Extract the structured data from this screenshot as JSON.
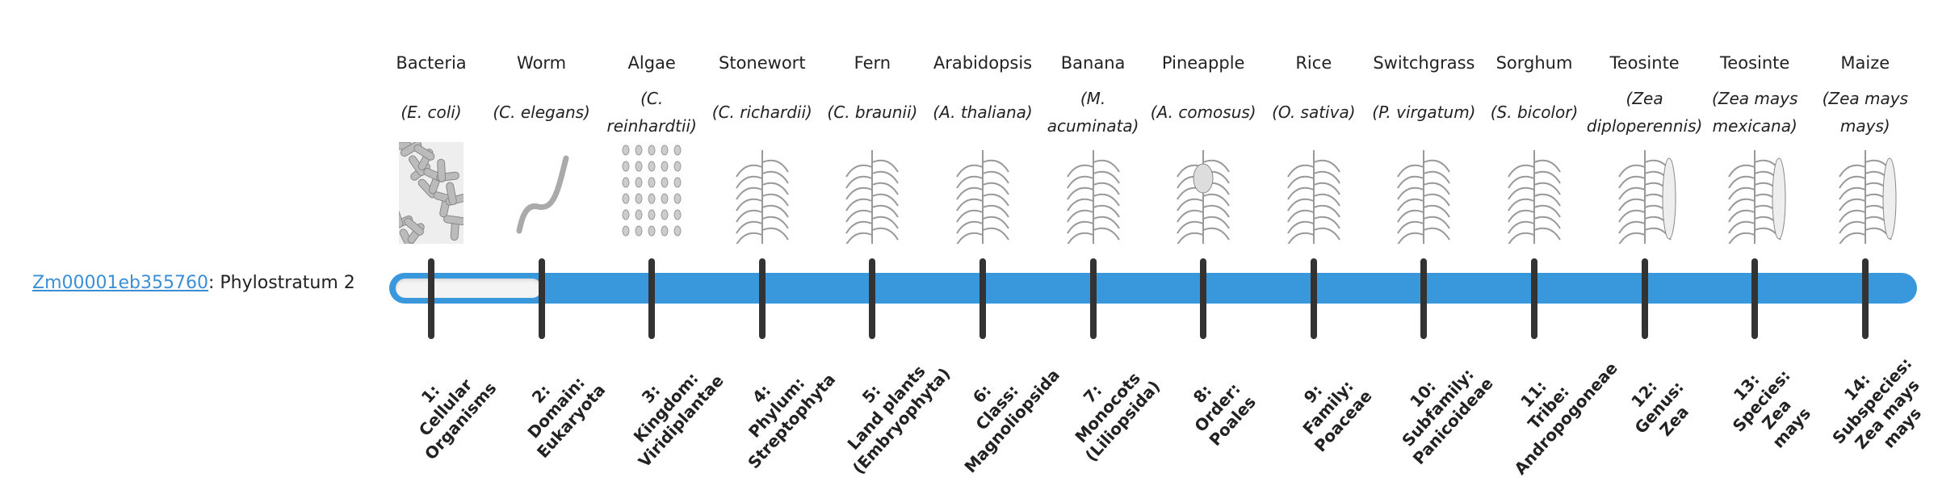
{
  "gene": {
    "id": "Zm00001eb355760",
    "suffix": ": Phylostratum 2"
  },
  "current_stratum": 2,
  "colors": {
    "bar": "#3898db",
    "tick": "#333333",
    "link": "#3a8fd6"
  },
  "strata": [
    {
      "common": "Bacteria",
      "sci": "(E. coli)",
      "icon": "bacteria-icon",
      "lines": [
        "1:",
        "Cellular",
        "Organisms"
      ]
    },
    {
      "common": "Worm",
      "sci": "(C. elegans)",
      "icon": "worm-icon",
      "lines": [
        "2:",
        "Domain:",
        "Eukaryota"
      ]
    },
    {
      "common": "Algae",
      "sci": "(C. reinhardtii)",
      "icon": "algae-icon",
      "lines": [
        "3:",
        "Kingdom:",
        "Viridiplantae"
      ]
    },
    {
      "common": "Stonewort",
      "sci": "(C. richardii)",
      "icon": "stonewort-icon",
      "lines": [
        "4:",
        "Phylum:",
        "Streptophyta"
      ]
    },
    {
      "common": "Fern",
      "sci": "(C. braunii)",
      "icon": "fern-icon",
      "lines": [
        "5:",
        "Land plants",
        "(Embryophyta)"
      ]
    },
    {
      "common": "Arabidopsis",
      "sci": "(A. thaliana)",
      "icon": "arabidopsis-icon",
      "lines": [
        "6:",
        "Class:",
        "Magnoliopsida"
      ]
    },
    {
      "common": "Banana",
      "sci": "(M. acuminata)",
      "icon": "banana-icon",
      "lines": [
        "7:",
        "Monocots",
        "(Liliopsida)"
      ]
    },
    {
      "common": "Pineapple",
      "sci": "(A. comosus)",
      "icon": "pineapple-icon",
      "lines": [
        "8:",
        "Order:",
        "Poales"
      ]
    },
    {
      "common": "Rice",
      "sci": "(O. sativa)",
      "icon": "rice-icon",
      "lines": [
        "9:",
        "Family:",
        "Poaceae"
      ]
    },
    {
      "common": "Switchgrass",
      "sci": "(P. virgatum)",
      "icon": "switchgrass-icon",
      "lines": [
        "10:",
        "Subfamily:",
        "Panicoideae"
      ]
    },
    {
      "common": "Sorghum",
      "sci": "(S. bicolor)",
      "icon": "sorghum-icon",
      "lines": [
        "11:",
        "Tribe:",
        "Andropogoneae"
      ]
    },
    {
      "common": "Teosinte",
      "sci": "(Zea diploperennis)",
      "icon": "teosinte-icon",
      "lines": [
        "12:",
        "Genus:",
        "Zea"
      ]
    },
    {
      "common": "Teosinte",
      "sci": "(Zea mays mexicana)",
      "icon": "teosinte-icon",
      "lines": [
        "13:",
        "Species:",
        "Zea",
        "mays"
      ]
    },
    {
      "common": "Maize",
      "sci": "(Zea mays mays)",
      "icon": "maize-icon",
      "lines": [
        "14:",
        "Subspecies:",
        "Zea mays",
        "mays"
      ]
    }
  ]
}
